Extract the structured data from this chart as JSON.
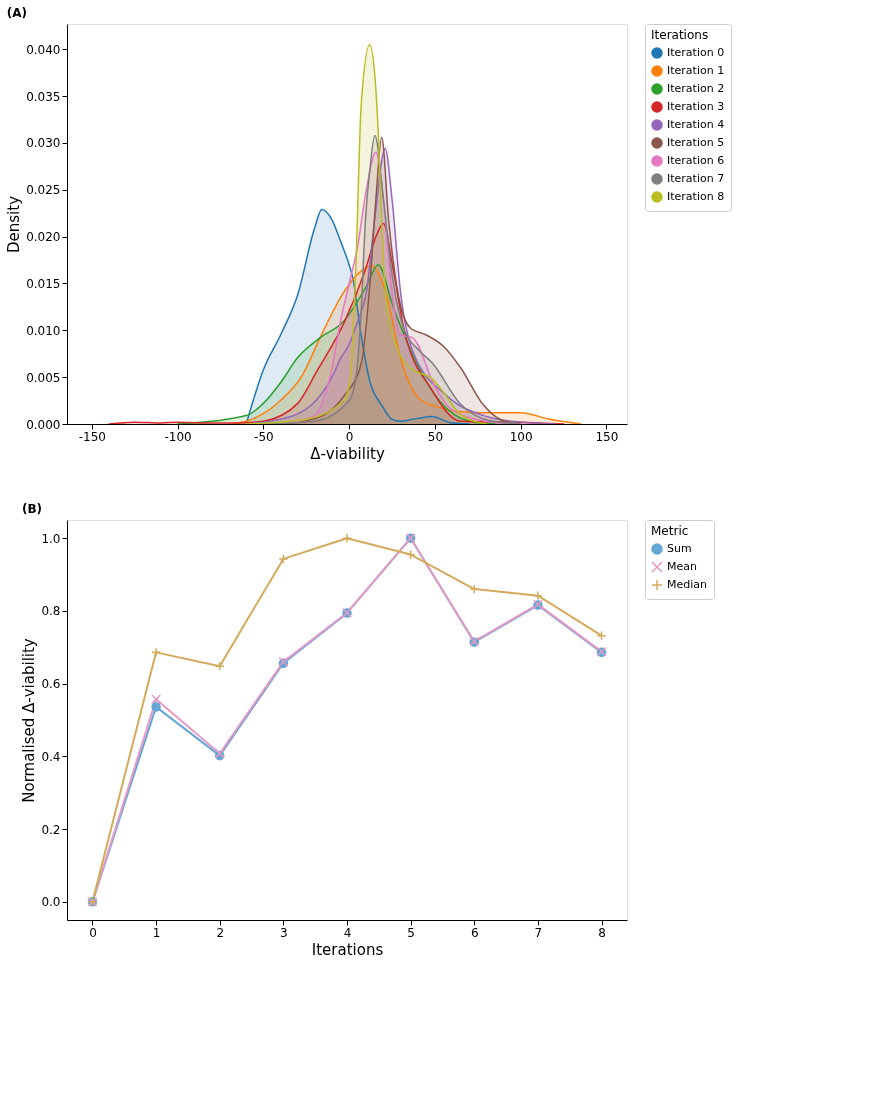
{
  "chart_data": [
    {
      "type": "area",
      "title": "(A)",
      "xlabel": "Δ-viability",
      "ylabel": "Density",
      "legend_title": "Iterations",
      "legend": "right",
      "xlim": [
        -164.5,
        162
      ],
      "ylim": [
        0,
        0.0427
      ],
      "xticks": [
        -150,
        -100,
        -50,
        0,
        50,
        100,
        150
      ],
      "yticks": [
        {
          "value": 0,
          "label": "0.000"
        },
        {
          "value": 0.005,
          "label": "0.005"
        },
        {
          "value": 0.01,
          "label": "0.010"
        },
        {
          "value": 0.015,
          "label": "0.015"
        },
        {
          "value": 0.02,
          "label": "0.020"
        },
        {
          "value": 0.025,
          "label": "0.025"
        },
        {
          "value": 0.03,
          "label": "0.030"
        },
        {
          "value": 0.035,
          "label": "0.035"
        },
        {
          "value": 0.04,
          "label": "0.040"
        }
      ],
      "series": [
        {
          "name": "Iteration 0",
          "color": "#1f77b4",
          "x": [
            -60,
            -50,
            -40,
            -30,
            -20,
            -16,
            -10,
            -5,
            0,
            2,
            7,
            12,
            19,
            25,
            30,
            40,
            48,
            60,
            70
          ],
          "values": [
            0,
            0.0058,
            0.0095,
            0.0138,
            0.021,
            0.0229,
            0.0218,
            0.0195,
            0.017,
            0.0157,
            0.0095,
            0.0046,
            0.002,
            0.0005,
            0.0003,
            0.0006,
            0.0008,
            0.0001,
            0
          ]
        },
        {
          "name": "Iteration 1",
          "color": "#ff7f0e",
          "x": [
            -70,
            -60,
            -40,
            -27,
            -17,
            -3,
            5,
            13,
            22,
            30,
            41,
            52,
            65,
            78,
            100,
            117,
            135
          ],
          "values": [
            0,
            0.0003,
            0.0025,
            0.0053,
            0.0092,
            0.0141,
            0.016,
            0.0169,
            0.0137,
            0.007,
            0.0027,
            0.0018,
            0.0013,
            0.0012,
            0.0012,
            0.0005,
            0
          ]
        },
        {
          "name": "Iteration 2",
          "color": "#2ca02c",
          "x": [
            -100,
            -60,
            -50,
            -40,
            -30,
            -17,
            -3,
            9.5,
            17,
            25.5,
            37,
            53,
            70,
            85
          ],
          "values": [
            0,
            0.0009,
            0.0022,
            0.0044,
            0.0071,
            0.0092,
            0.011,
            0.0145,
            0.017,
            0.0126,
            0.0074,
            0.0024,
            0.0003,
            0
          ]
        },
        {
          "name": "Iteration 3",
          "color": "#d62728",
          "x": [
            -140,
            -125,
            -110,
            -100,
            -85,
            -65,
            -50,
            -30,
            -18,
            -3,
            9.5,
            15.6,
            20,
            25.5,
            32,
            48,
            65,
            100,
            125
          ],
          "values": [
            0,
            0.0002,
            0.0001,
            0.0002,
            0.0001,
            0.0001,
            0.0003,
            0.0022,
            0.0059,
            0.0108,
            0.0165,
            0.02,
            0.0214,
            0.0167,
            0.0101,
            0.0037,
            0.0003,
            0.0002,
            0
          ]
        },
        {
          "name": "Iteration 4",
          "color": "#9467bd",
          "x": [
            -60,
            -34,
            -10,
            -5,
            0,
            5,
            10,
            15,
            21,
            25,
            30,
            37,
            57,
            80,
            100,
            120
          ],
          "values": [
            0,
            0.0008,
            0.005,
            0.007,
            0.0085,
            0.011,
            0.014,
            0.022,
            0.0294,
            0.024,
            0.014,
            0.0078,
            0.003,
            0.0008,
            0.0002,
            0
          ]
        },
        {
          "name": "Iteration 5",
          "color": "#8c564b",
          "x": [
            -40,
            -18,
            -3,
            7,
            12,
            15.6,
            19,
            23,
            30,
            36,
            45,
            55,
            65,
            78,
            89,
            100
          ],
          "values": [
            0,
            0.0007,
            0.003,
            0.0064,
            0.0147,
            0.024,
            0.0306,
            0.0218,
            0.0126,
            0.0102,
            0.0095,
            0.0083,
            0.006,
            0.0021,
            0.0004,
            0
          ]
        },
        {
          "name": "Iteration 6",
          "color": "#e377c2",
          "x": [
            -40,
            -21,
            -10,
            -5,
            0,
            5,
            10,
            15.6,
            20,
            25,
            30,
            37,
            50,
            60,
            80,
            100
          ],
          "values": [
            0,
            0.0008,
            0.006,
            0.011,
            0.015,
            0.019,
            0.025,
            0.029,
            0.024,
            0.014,
            0.0095,
            0.0092,
            0.004,
            0.0015,
            0.0003,
            0
          ]
        },
        {
          "name": "Iteration 7",
          "color": "#7f7f7f",
          "x": [
            -50,
            -20,
            0,
            4,
            7,
            9.5,
            12,
            15,
            20,
            25,
            32,
            40,
            48.5,
            65,
            81,
            100
          ],
          "values": [
            0,
            0.0003,
            0.0025,
            0.005,
            0.012,
            0.0218,
            0.027,
            0.0308,
            0.024,
            0.016,
            0.0101,
            0.008,
            0.0065,
            0.0021,
            0.0004,
            0
          ]
        },
        {
          "name": "Iteration 8",
          "color": "#bcbd22",
          "x": [
            -60,
            -25,
            -3,
            0.6,
            4,
            7,
            12,
            15.6,
            17,
            19.6,
            22,
            27,
            37,
            48,
            55,
            65,
            80
          ],
          "values": [
            0,
            0.0005,
            0.0025,
            0.0049,
            0.0172,
            0.034,
            0.0405,
            0.0357,
            0.031,
            0.0187,
            0.0126,
            0.0086,
            0.0058,
            0.0049,
            0.0034,
            0.001,
            0
          ]
        }
      ]
    },
    {
      "type": "line",
      "title": "(B)",
      "xlabel": "Iterations",
      "ylabel": "Normalised Δ-viability",
      "legend_title": "Metric",
      "legend": "right",
      "line_style": "solid",
      "x": [
        0,
        1,
        2,
        3,
        4,
        5,
        6,
        7,
        8
      ],
      "xlim": [
        -0.4,
        8.4
      ],
      "ylim": [
        -0.05,
        1.05
      ],
      "xticks": [
        0,
        1,
        2,
        3,
        4,
        5,
        6,
        7,
        8
      ],
      "yticks": [
        {
          "value": 0,
          "label": "0.0"
        },
        {
          "value": 0.2,
          "label": "0.2"
        },
        {
          "value": 0.4,
          "label": "0.4"
        },
        {
          "value": 0.6,
          "label": "0.6"
        },
        {
          "value": 0.8,
          "label": "0.8"
        },
        {
          "value": 1,
          "label": "1.0"
        }
      ],
      "series": [
        {
          "name": "Sum",
          "color": "#64a6d4",
          "marker": "circle",
          "values": [
            0,
            0.536,
            0.402,
            0.656,
            0.794,
            1.0,
            0.714,
            0.816,
            0.686
          ]
        },
        {
          "name": "Mean",
          "color": "#e59ac6",
          "marker": "cross",
          "values": [
            0,
            0.557,
            0.408,
            0.66,
            0.795,
            1.0,
            0.716,
            0.818,
            0.688
          ]
        },
        {
          "name": "Median",
          "color": "#d4aa5c",
          "marker": "plus",
          "values": [
            0,
            0.686,
            0.648,
            0.943,
            1.0,
            0.955,
            0.86,
            0.842,
            0.732
          ]
        }
      ]
    }
  ]
}
